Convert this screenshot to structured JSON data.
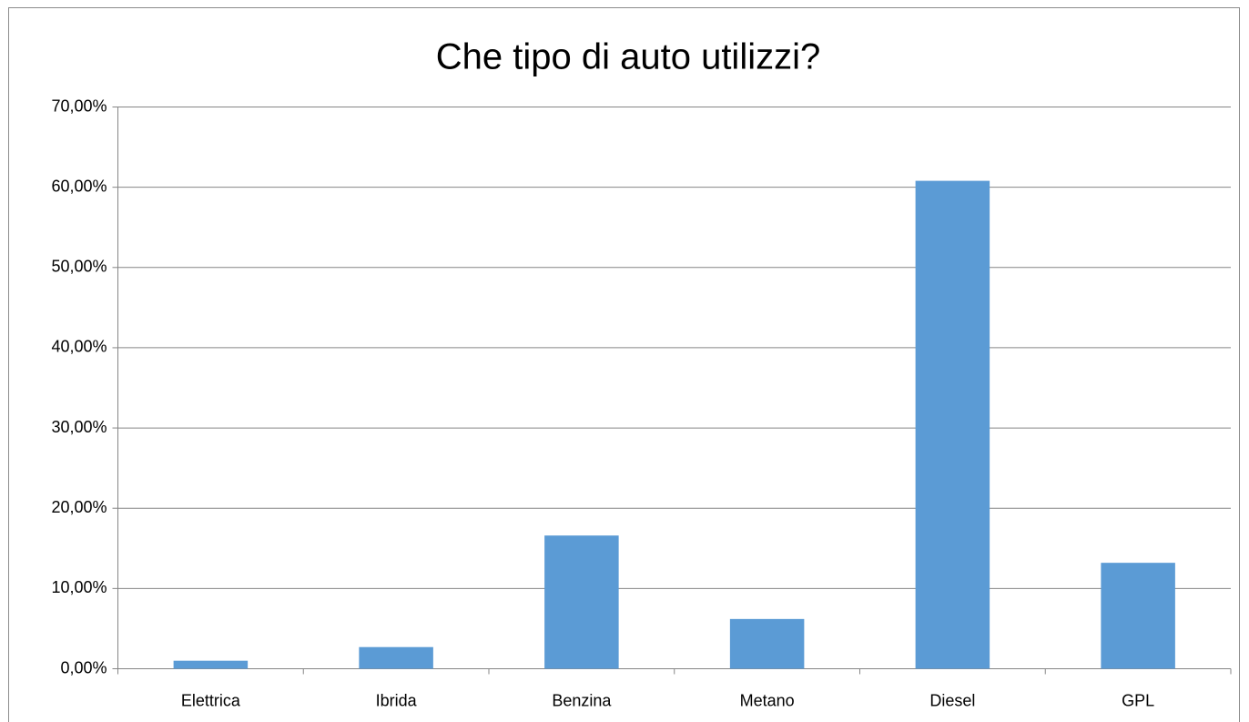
{
  "chart_data": {
    "type": "bar",
    "title": "Che tipo di auto utilizzi?",
    "categories": [
      "Elettrica",
      "Ibrida",
      "Benzina",
      "Metano",
      "Diesel",
      "GPL"
    ],
    "values": [
      1.0,
      2.7,
      16.6,
      6.2,
      60.8,
      13.2
    ],
    "color": "#5b9bd5",
    "ylim": [
      0,
      70
    ],
    "yticks": [
      {
        "value": 0,
        "label": "0,00%"
      },
      {
        "value": 10,
        "label": "10,00%"
      },
      {
        "value": 20,
        "label": "20,00%"
      },
      {
        "value": 30,
        "label": "30,00%"
      },
      {
        "value": 40,
        "label": "40,00%"
      },
      {
        "value": 50,
        "label": "50,00%"
      },
      {
        "value": 60,
        "label": "60,00%"
      },
      {
        "value": 70,
        "label": "70,00%"
      }
    ],
    "grid": true
  }
}
